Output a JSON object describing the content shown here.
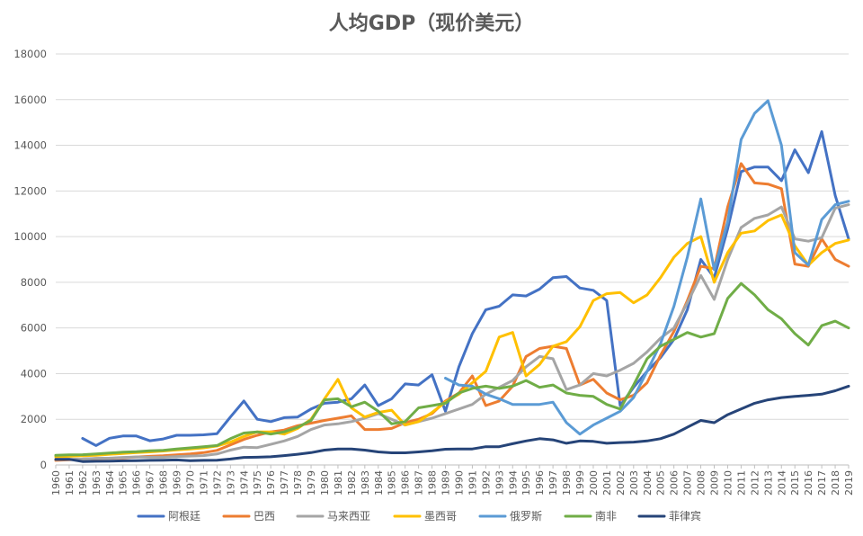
{
  "chart_data": {
    "type": "line",
    "title": "人均GDP（现价美元）",
    "xlabel": "",
    "ylabel": "",
    "ylim": [
      0,
      18000
    ],
    "yticks": [
      0,
      2000,
      4000,
      6000,
      8000,
      10000,
      12000,
      14000,
      16000,
      18000
    ],
    "grid": "horizontal",
    "legend": "bottom",
    "x": [
      "1960",
      "1961",
      "1962",
      "1963",
      "1964",
      "1965",
      "1966",
      "1967",
      "1968",
      "1969",
      "1970",
      "1971",
      "1972",
      "1973",
      "1974",
      "1975",
      "1976",
      "1977",
      "1978",
      "1979",
      "1980",
      "1981",
      "1982",
      "1983",
      "1984",
      "1985",
      "1986",
      "1987",
      "1988",
      "1989",
      "1990",
      "1991",
      "1992",
      "1993",
      "1994",
      "1995",
      "1996",
      "1997",
      "1998",
      "1999",
      "2000",
      "2001",
      "2002",
      "2003",
      "2004",
      "2005",
      "2006",
      "2007",
      "2008",
      "2009",
      "2010",
      "2011",
      "2012",
      "2013",
      "2014",
      "2015",
      "2016",
      "2017",
      "2018",
      "2019"
    ],
    "series": [
      {
        "name": "阿根廷",
        "color": "#4472c4",
        "values": [
          null,
          null,
          1160,
          850,
          1170,
          1270,
          1270,
          1060,
          1140,
          1300,
          1300,
          1320,
          1370,
          2100,
          2800,
          2000,
          1900,
          2070,
          2100,
          2450,
          2700,
          2750,
          2900,
          3500,
          2600,
          2900,
          3550,
          3500,
          3950,
          2350,
          4300,
          5750,
          6800,
          6950,
          7450,
          7400,
          7700,
          8200,
          8250,
          7750,
          7650,
          7200,
          2600,
          3400,
          4100,
          4700,
          5500,
          6800,
          9000,
          8200,
          10350,
          12850,
          13050,
          13050,
          12450,
          13800,
          12800,
          14600,
          11800,
          9900
        ]
      },
      {
        "name": "巴西",
        "color": "#ed7d31",
        "values": [
          200,
          230,
          260,
          280,
          290,
          310,
          350,
          380,
          400,
          440,
          480,
          540,
          640,
          880,
          1120,
          1300,
          1450,
          1530,
          1720,
          1830,
          1950,
          2050,
          2150,
          1550,
          1550,
          1600,
          1850,
          2000,
          2250,
          2800,
          3150,
          3900,
          2600,
          2800,
          3450,
          4750,
          5100,
          5200,
          5100,
          3500,
          3750,
          3150,
          2850,
          3050,
          3600,
          4800,
          5850,
          7200,
          8700,
          8600,
          11300,
          13200,
          12350,
          12300,
          12100,
          8800,
          8700,
          9900,
          9000,
          8700
        ]
      },
      {
        "name": "马来西亚",
        "color": "#a5a5a5",
        "values": [
          240,
          250,
          260,
          290,
          300,
          330,
          350,
          340,
          340,
          370,
          390,
          410,
          480,
          650,
          780,
          760,
          900,
          1050,
          1250,
          1550,
          1750,
          1800,
          1900,
          2050,
          2250,
          2000,
          1750,
          1900,
          2050,
          2250,
          2450,
          2650,
          3100,
          3400,
          3700,
          4300,
          4750,
          4650,
          3300,
          3500,
          4000,
          3900,
          4150,
          4450,
          4950,
          5550,
          6000,
          7100,
          8300,
          7250,
          9000,
          10400,
          10800,
          10950,
          11300,
          9900,
          9800,
          9950,
          11250,
          11400
        ]
      },
      {
        "name": "墨西哥",
        "color": "#ffc000",
        "values": [
          360,
          380,
          400,
          420,
          470,
          500,
          540,
          570,
          610,
          660,
          700,
          750,
          830,
          1000,
          1250,
          1450,
          1450,
          1350,
          1600,
          2000,
          2900,
          3750,
          2500,
          2100,
          2300,
          2400,
          1750,
          1900,
          2300,
          2750,
          3100,
          3600,
          4100,
          5600,
          5800,
          3900,
          4400,
          5200,
          5400,
          6050,
          7200,
          7500,
          7550,
          7100,
          7450,
          8200,
          9100,
          9700,
          10000,
          8000,
          9300,
          10150,
          10250,
          10700,
          10950,
          9600,
          8750,
          9300,
          9700,
          9850
        ]
      },
      {
        "name": "俄罗斯",
        "color": "#5b9bd5",
        "values": [
          null,
          null,
          null,
          null,
          null,
          null,
          null,
          null,
          null,
          null,
          null,
          null,
          null,
          null,
          null,
          null,
          null,
          null,
          null,
          null,
          null,
          null,
          null,
          null,
          null,
          null,
          null,
          null,
          null,
          3800,
          3500,
          3450,
          3100,
          2900,
          2650,
          2650,
          2650,
          2750,
          1850,
          1350,
          1750,
          2050,
          2350,
          2950,
          4100,
          5300,
          6950,
          9100,
          11650,
          8550,
          10650,
          14250,
          15400,
          15950,
          14000,
          9300,
          8750,
          10750,
          11400,
          11550
        ]
      },
      {
        "name": "南非",
        "color": "#70ad47",
        "values": [
          420,
          440,
          450,
          480,
          520,
          560,
          580,
          620,
          640,
          700,
          750,
          800,
          850,
          1150,
          1400,
          1450,
          1350,
          1450,
          1650,
          1950,
          2850,
          2900,
          2550,
          2750,
          2350,
          1800,
          1900,
          2500,
          2600,
          2700,
          3150,
          3350,
          3450,
          3350,
          3450,
          3700,
          3400,
          3500,
          3150,
          3050,
          3000,
          2650,
          2450,
          3500,
          4650,
          5200,
          5500,
          5800,
          5600,
          5750,
          7300,
          7950,
          7450,
          6800,
          6400,
          5750,
          5250,
          6100,
          6300,
          6000
        ]
      },
      {
        "name": "菲律宾",
        "color": "#264478",
        "values": [
          250,
          250,
          150,
          160,
          170,
          180,
          190,
          200,
          210,
          220,
          190,
          200,
          210,
          260,
          330,
          340,
          360,
          410,
          470,
          540,
          650,
          700,
          700,
          650,
          570,
          530,
          530,
          570,
          620,
          690,
          700,
          700,
          800,
          800,
          930,
          1050,
          1150,
          1100,
          950,
          1050,
          1030,
          950,
          980,
          1000,
          1050,
          1150,
          1350,
          1650,
          1950,
          1850,
          2200,
          2450,
          2700,
          2850,
          2950,
          3000,
          3050,
          3100,
          3250,
          3450
        ]
      }
    ]
  }
}
